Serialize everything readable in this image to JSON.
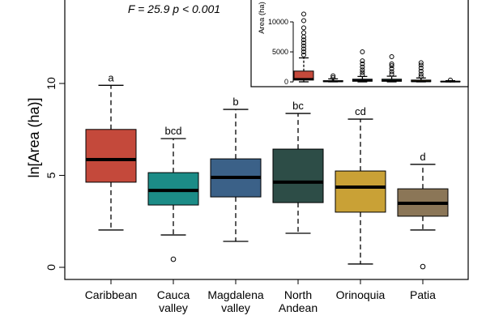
{
  "chart_data": [
    {
      "type": "box",
      "ylabel": "ln[Area (ha)]",
      "annotation": "F = 25.9   p < 0.001",
      "categories": [
        "Caribbean",
        "Cauca valley",
        "Magdalena valley",
        "North Andean",
        "Orinoquia",
        "Patia"
      ],
      "ylim": [
        -0.66,
        14.54
      ],
      "yticks": [
        0,
        5,
        10
      ],
      "boxes": [
        {
          "whisker_low": 2.03,
          "q1": 4.63,
          "median": 5.86,
          "q3": 7.5,
          "whisker_high": 9.9,
          "outliers": [],
          "letter": "a",
          "color": "#c4493b"
        },
        {
          "whisker_low": 1.76,
          "q1": 3.39,
          "median": 4.18,
          "q3": 5.15,
          "whisker_high": 7.0,
          "outliers": [
            0.44
          ],
          "letter": "bcd",
          "color": "#1c8c87"
        },
        {
          "whisker_low": 1.41,
          "q1": 3.83,
          "median": 4.89,
          "q3": 5.9,
          "whisker_high": 8.59,
          "outliers": [],
          "letter": "b",
          "color": "#3b6188"
        },
        {
          "whisker_low": 1.85,
          "q1": 3.52,
          "median": 4.63,
          "q3": 6.43,
          "whisker_high": 8.37,
          "outliers": [],
          "letter": "bc",
          "color": "#2d4d47"
        },
        {
          "whisker_low": 0.18,
          "q1": 3.0,
          "median": 4.36,
          "q3": 5.24,
          "whisker_high": 8.06,
          "outliers": [],
          "letter": "cd",
          "color": "#c9a136"
        },
        {
          "whisker_low": 2.03,
          "q1": 2.78,
          "median": 3.48,
          "q3": 4.27,
          "whisker_high": 5.6,
          "outliers": [
            0.04
          ],
          "letter": "d",
          "color": "#8b7657"
        }
      ]
    },
    {
      "type": "box",
      "ylabel": "Area (ha)",
      "ylim": [
        -800,
        13650
      ],
      "yticks": [
        0,
        5000,
        10000
      ],
      "boxes": [
        {
          "whisker_low": 8,
          "q1": 300,
          "median": 500,
          "q3": 1800,
          "whisker_high": 4000,
          "outliers": [
            4500,
            5000,
            5500,
            6000,
            6500,
            7000,
            7500,
            8200,
            9000,
            10200,
            11300
          ],
          "color": "#c4493b"
        },
        {
          "whisker_low": 6,
          "q1": 30,
          "median": 100,
          "q3": 200,
          "whisker_high": 500,
          "outliers": [
            700,
            1000
          ],
          "color": "#1c8c87"
        },
        {
          "whisker_low": 4,
          "q1": 100,
          "median": 250,
          "q3": 450,
          "whisker_high": 900,
          "outliers": [
            1200,
            1600,
            2000,
            2500,
            3000,
            3500,
            5000
          ],
          "color": "#3b6188"
        },
        {
          "whisker_low": 6,
          "q1": 100,
          "median": 200,
          "q3": 450,
          "whisker_high": 950,
          "outliers": [
            1300,
            1700,
            2200,
            2700,
            3000,
            4200
          ],
          "color": "#2d4d47"
        },
        {
          "whisker_low": 1,
          "q1": 40,
          "median": 100,
          "q3": 300,
          "whisker_high": 650,
          "outliers": [
            900,
            1300,
            1800,
            2300,
            2800,
            3200
          ],
          "color": "#c9a136"
        },
        {
          "whisker_low": 8,
          "q1": 20,
          "median": 50,
          "q3": 100,
          "whisker_high": 200,
          "outliers": [
            300
          ],
          "color": "#8b7657"
        }
      ]
    }
  ]
}
